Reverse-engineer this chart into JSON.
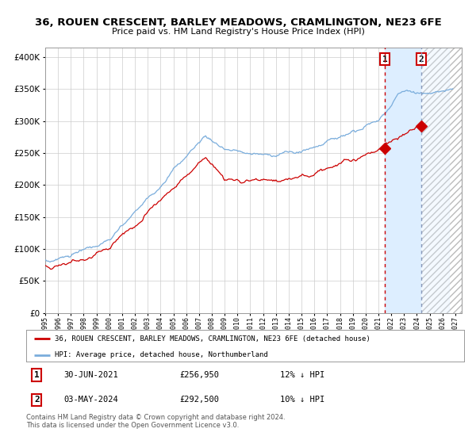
{
  "title": "36, ROUEN CRESCENT, BARLEY MEADOWS, CRAMLINGTON, NE23 6FE",
  "subtitle": "Price paid vs. HM Land Registry's House Price Index (HPI)",
  "ytick_vals": [
    0,
    50000,
    100000,
    150000,
    200000,
    250000,
    300000,
    350000,
    400000
  ],
  "ylim": [
    0,
    415000
  ],
  "xlim_start": 1995.0,
  "xlim_end": 2027.5,
  "purchase1_date": 2021.5,
  "purchase1_price": 256950,
  "purchase1_label": "1",
  "purchase2_date": 2024.33,
  "purchase2_price": 292500,
  "purchase2_label": "2",
  "legend_line1": "36, ROUEN CRESCENT, BARLEY MEADOWS, CRAMLINGTON, NE23 6FE (detached house)",
  "legend_line2": "HPI: Average price, detached house, Northumberland",
  "annotation1_date": "30-JUN-2021",
  "annotation1_price": "£256,950",
  "annotation1_hpi": "12% ↓ HPI",
  "annotation2_date": "03-MAY-2024",
  "annotation2_price": "£292,500",
  "annotation2_hpi": "10% ↓ HPI",
  "footer": "Contains HM Land Registry data © Crown copyright and database right 2024.\nThis data is licensed under the Open Government Licence v3.0.",
  "hpi_color": "#7aaddc",
  "price_color": "#cc0000",
  "background_color": "#ffffff",
  "grid_color": "#cccccc",
  "shaded_color": "#ddeeff",
  "hatch_color": "#bbbbbb"
}
